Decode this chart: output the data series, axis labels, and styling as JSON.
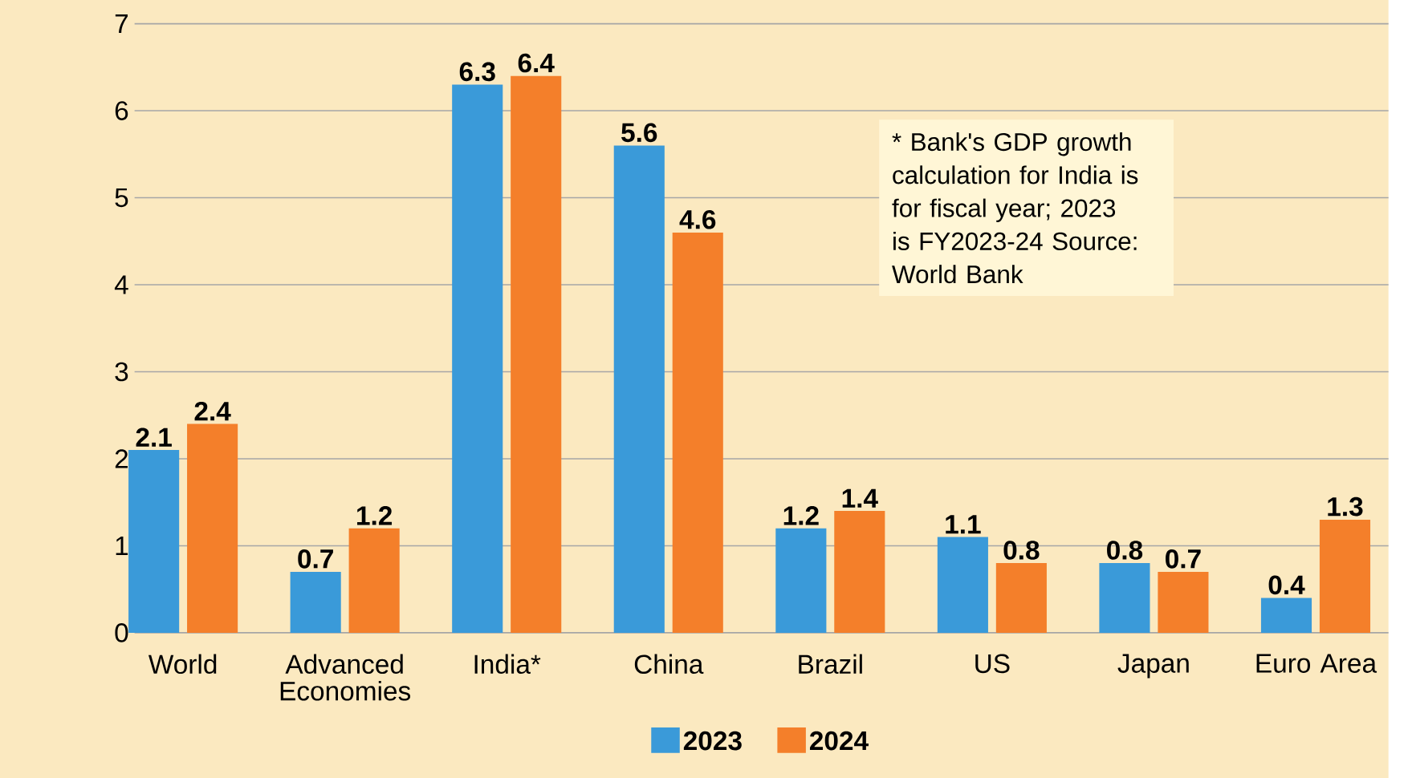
{
  "chart_data": {
    "type": "bar",
    "categories": [
      "World",
      "Advanced Economies",
      "India*",
      "China",
      "Brazil",
      "US",
      "Japan",
      "Euro Area"
    ],
    "series": [
      {
        "name": "2023",
        "color": "#3a9ad9",
        "values": [
          2.1,
          0.7,
          6.3,
          5.6,
          1.2,
          1.1,
          0.8,
          0.4
        ]
      },
      {
        "name": "2024",
        "color": "#f47f2a",
        "values": [
          2.4,
          1.2,
          6.4,
          4.6,
          1.4,
          0.8,
          0.7,
          1.3
        ]
      }
    ],
    "ylim": [
      0,
      7
    ],
    "yticks": [
      0,
      1,
      2,
      3,
      4,
      5,
      6,
      7
    ],
    "grid": "y",
    "legend": "bottom",
    "data_labels": true,
    "annotations": [
      "* Bank's GDP growth calculation for India is for fiscal year; 2023 is FY2023-24 Source: World Bank"
    ]
  }
}
